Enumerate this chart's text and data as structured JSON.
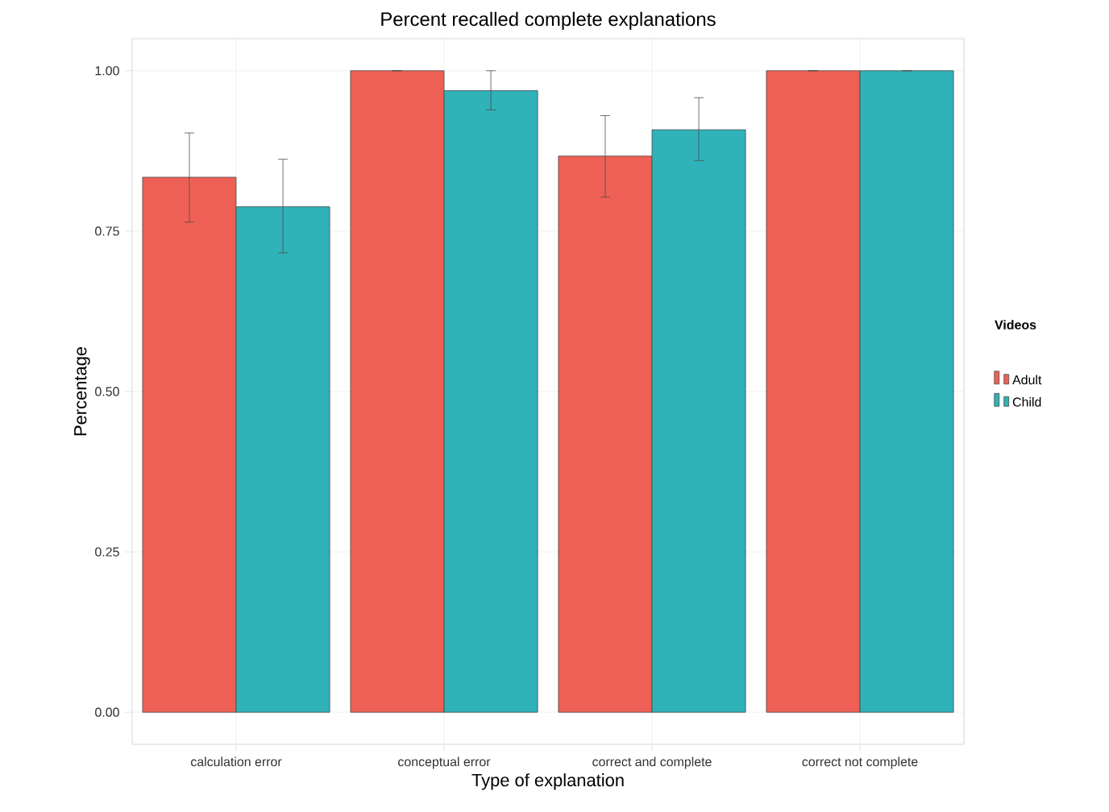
{
  "chart_data": {
    "type": "bar",
    "title": "Percent recalled complete explanations",
    "xlabel": "Type of explanation",
    "ylabel": "Percentage",
    "legend_title": "Videos",
    "categories": [
      "calculation error",
      "conceptual error",
      "correct and complete",
      "correct not complete"
    ],
    "series": [
      {
        "name": "Adult",
        "color": "#ee6055",
        "values": [
          0.834,
          1.0,
          0.867,
          1.0
        ],
        "errors": [
          [
            0.764,
            0.903
          ],
          null,
          [
            0.803,
            0.93
          ],
          null
        ]
      },
      {
        "name": "Child",
        "color": "#2fb2b8",
        "values": [
          0.788,
          0.969,
          0.908,
          1.0
        ],
        "errors": [
          [
            0.716,
            0.862
          ],
          [
            0.939,
            1.0
          ],
          [
            0.86,
            0.958
          ],
          null
        ]
      }
    ],
    "ylim": [
      -0.05,
      1.05
    ],
    "yticks": [
      {
        "value": 0,
        "label": "0.00"
      },
      {
        "value": 0.25,
        "label": "0.25"
      },
      {
        "value": 0.5,
        "label": "0.50"
      },
      {
        "value": 0.75,
        "label": "0.75"
      },
      {
        "value": 1,
        "label": "1.00"
      }
    ],
    "grid": true,
    "legend": "right"
  }
}
